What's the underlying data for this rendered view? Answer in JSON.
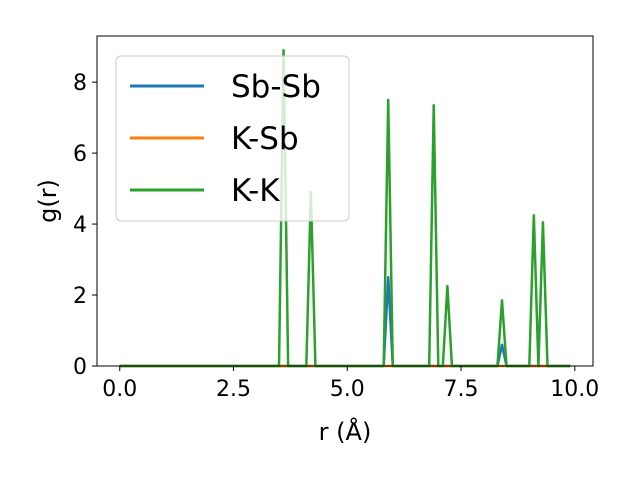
{
  "chart_data": {
    "type": "line",
    "title": "",
    "xlabel": "r (Å)",
    "ylabel": "g(r)",
    "xlim": [
      -0.5,
      10.4
    ],
    "ylim": [
      0,
      9.3
    ],
    "xticks": [
      0.0,
      2.5,
      5.0,
      7.5,
      10.0
    ],
    "xtick_labels": [
      "0.0",
      "2.5",
      "5.0",
      "7.5",
      "10.0"
    ],
    "yticks": [
      0,
      2,
      4,
      6,
      8
    ],
    "ytick_labels": [
      "0",
      "2",
      "4",
      "6",
      "8"
    ],
    "grid": false,
    "legend_position": "top-left",
    "series": [
      {
        "name": "Sb-Sb",
        "color": "#1f77b4",
        "x": [
          0,
          5.8,
          5.9,
          6.0,
          8.3,
          8.4,
          8.5,
          9.9
        ],
        "y": [
          0,
          0,
          2.5,
          0,
          0,
          0.6,
          0,
          0
        ]
      },
      {
        "name": "K-Sb",
        "color": "#ff7f0e",
        "x": [
          0,
          9.9
        ],
        "y": [
          0,
          0
        ]
      },
      {
        "name": "K-K",
        "color": "#2ca02c",
        "x": [
          0,
          3.5,
          3.6,
          3.7,
          4.1,
          4.2,
          4.3,
          5.8,
          5.9,
          6.0,
          6.8,
          6.9,
          7.0,
          7.1,
          7.2,
          7.3,
          8.3,
          8.4,
          8.5,
          9.0,
          9.1,
          9.2,
          9.3,
          9.4,
          9.9
        ],
        "y": [
          0,
          0,
          8.9,
          0,
          0,
          4.9,
          0,
          0,
          7.5,
          0,
          0,
          7.35,
          0,
          0,
          2.25,
          0,
          0,
          1.85,
          0,
          0,
          4.25,
          0,
          4.05,
          0,
          0
        ]
      }
    ]
  }
}
